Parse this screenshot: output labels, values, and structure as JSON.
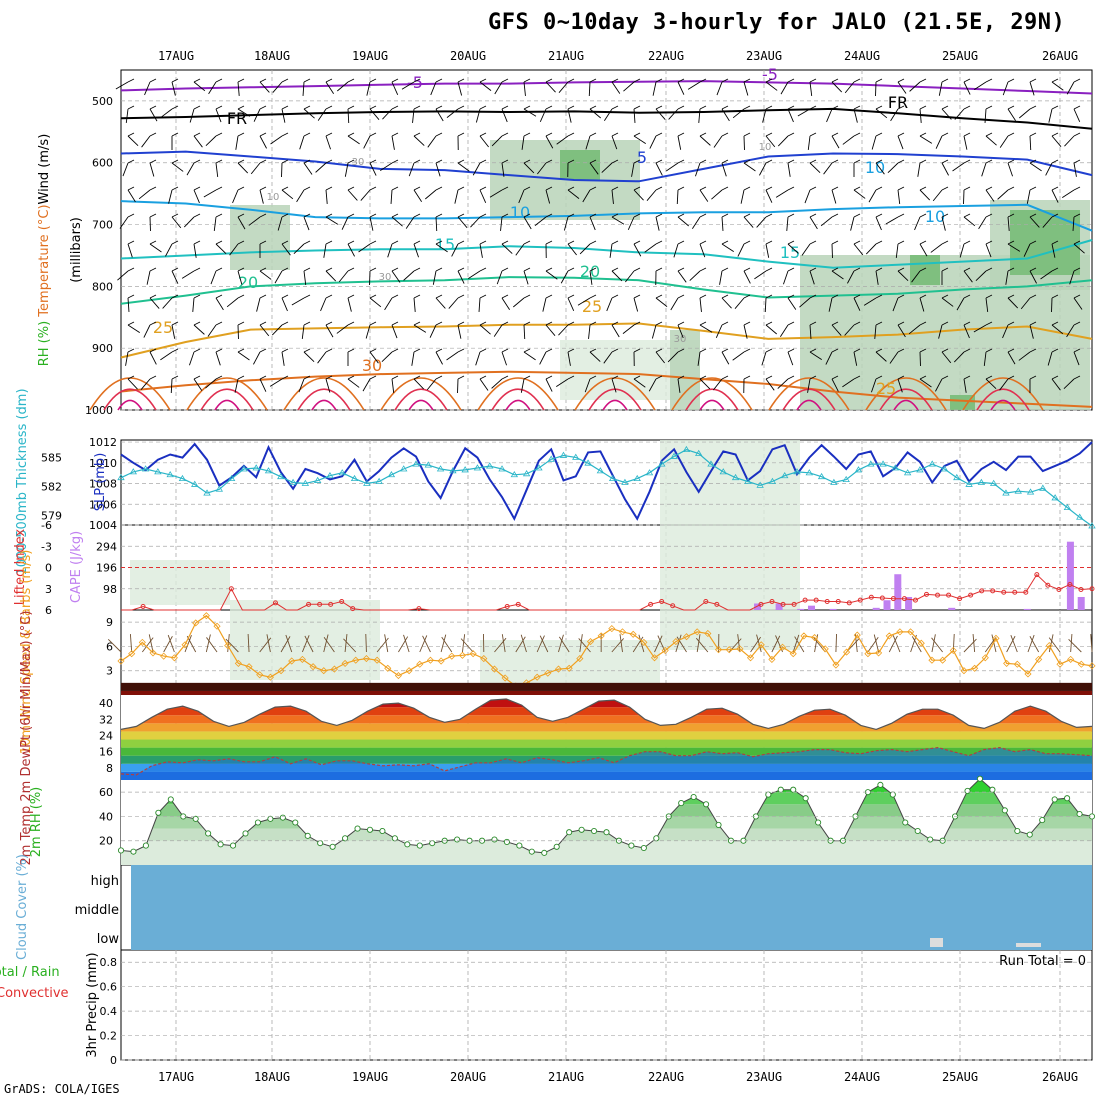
{
  "title": "GFS 0~10day 3-hourly for JALO (21.5E, 29N)",
  "credit": "GrADS: COLA/IGES",
  "dates": [
    "17AUG",
    "18AUG",
    "19AUG",
    "20AUG",
    "21AUG",
    "22AUG",
    "23AUG",
    "24AUG",
    "25AUG",
    "26AUG"
  ],
  "run_total": "Run Total = 0",
  "colors": {
    "grid": "#aaaaaa",
    "rh_light": "#dcebdc",
    "rh_mid": "#b8d4b8",
    "rh_dark": "#7fbf7f",
    "slp": "#1a2fc0",
    "thick": "#2ab5c8",
    "lifted": "#e03030",
    "cape": "#c080f0",
    "wind": "#f0a020",
    "cloud": "#6aaed6",
    "rh2m": "#6ccf6c"
  },
  "chart_data": [
    {
      "panel": "upper-air",
      "type": "contour",
      "ylabel_parts": [
        "Wind (m/s)",
        "Temperature (°C)",
        "RH (%)"
      ],
      "ylabel_unit": "(millibars)",
      "yticks": [
        "500",
        "600",
        "700",
        "800",
        "900",
        "1000"
      ],
      "ylim": [
        450,
        1000
      ],
      "isotherm_labels": [
        "-5",
        "-5",
        "FR",
        "FR",
        "5",
        "10",
        "10",
        "10",
        "15",
        "15",
        "20",
        "20",
        "25",
        "25",
        "25",
        "30"
      ],
      "rh_labels": [
        "30",
        "30",
        "30",
        "10",
        "10"
      ],
      "isotherms": [
        {
          "label": "-5",
          "p": [
            483,
            480,
            478,
            476,
            474,
            472,
            472,
            470,
            469,
            468,
            470,
            472,
            476,
            480,
            484,
            488
          ]
        },
        {
          "label": "FR",
          "p": [
            528,
            526,
            523,
            520,
            518,
            517,
            518,
            517,
            519,
            518,
            515,
            513,
            520,
            528,
            535,
            545
          ]
        },
        {
          "label": "5",
          "p": [
            585,
            582,
            590,
            598,
            610,
            612,
            620,
            628,
            630,
            610,
            590,
            585,
            586,
            590,
            595,
            620
          ]
        },
        {
          "label": "10",
          "p": [
            662,
            666,
            676,
            688,
            690,
            690,
            688,
            686,
            682,
            680,
            680,
            675,
            672,
            670,
            668,
            710
          ]
        },
        {
          "label": "15",
          "p": [
            755,
            750,
            745,
            742,
            740,
            740,
            735,
            738,
            745,
            748,
            760,
            770,
            765,
            760,
            755,
            725
          ]
        },
        {
          "label": "20",
          "p": [
            828,
            815,
            800,
            795,
            792,
            790,
            785,
            786,
            790,
            805,
            818,
            815,
            812,
            805,
            800,
            790
          ]
        },
        {
          "label": "25",
          "p": [
            915,
            890,
            870,
            868,
            866,
            865,
            862,
            862,
            860,
            872,
            885,
            882,
            878,
            870,
            865,
            885
          ]
        },
        {
          "label": "30",
          "p": [
            970,
            960,
            952,
            946,
            942,
            940,
            938,
            940,
            942,
            950,
            958,
            970,
            980,
            985,
            990,
            995
          ]
        }
      ]
    },
    {
      "panel": "slp-thickness",
      "type": "line",
      "ylabel_left": "1000-500mb Thickness (dm)",
      "ylabel_right": "SLP (mb)",
      "left_ticks": [
        "585",
        "582",
        "579"
      ],
      "right_ticks": [
        "1012",
        "1010",
        "1008",
        "1006",
        "1004"
      ],
      "ylim_slp": [
        1004,
        1012.2
      ],
      "ylim_thick": [
        578,
        586.8
      ],
      "series": [
        {
          "name": "SLP",
          "values": [
            1010.8,
            1010,
            1009.3,
            1010.3,
            1010.8,
            1010.5,
            1011.8,
            1010.3,
            1007.8,
            1008.6,
            1009.7,
            1008.6,
            1011.5,
            1009.1,
            1007.5,
            1009.4,
            1009,
            1008.4,
            1008.7,
            1010.3,
            1008.2,
            1009.2,
            1010.5,
            1011.4,
            1010.6,
            1008.2,
            1006.6,
            1009.2,
            1011.4,
            1010.5,
            1008.4,
            1006.7,
            1004.6,
            1007.4,
            1010.2,
            1011.3,
            1008.3,
            1008.7,
            1011,
            1011.1,
            1008.8,
            1006.5,
            1004.6,
            1007.2,
            1010.2,
            1011.3,
            1009.1,
            1007.2,
            1009.2,
            1011.1,
            1010.8,
            1008.3,
            1009.2,
            1011.3,
            1011.7,
            1008.9,
            1010.5,
            1011.7,
            1010.6,
            1009.4,
            1010.8,
            1011.1,
            1008.7,
            1009.5,
            1011,
            1010.1,
            1008.1,
            1009.7,
            1010.2,
            1008.2,
            1009.4,
            1010.1,
            1009.3,
            1010.6,
            1010.6,
            1009.2,
            1009.7,
            1010.2,
            1010.9,
            1012
          ]
        },
        {
          "name": "Thickness",
          "values": [
            582.9,
            583.5,
            583.8,
            583.5,
            583.2,
            582.8,
            582.2,
            581.3,
            581.7,
            582.8,
            583.8,
            583.9,
            583.6,
            583,
            582.4,
            582.3,
            582.6,
            583.1,
            583.4,
            582.8,
            582.3,
            582.5,
            583.2,
            583.8,
            584.3,
            584.2,
            583.8,
            583.6,
            583.7,
            583.9,
            584.1,
            583.8,
            583.2,
            583.3,
            583.9,
            584.8,
            585.2,
            585,
            584.4,
            583.6,
            582.8,
            582.4,
            582.8,
            583.4,
            584.3,
            585.1,
            585.8,
            585.4,
            584.3,
            583.5,
            582.9,
            582.5,
            582.1,
            582.5,
            583.1,
            583.5,
            583.4,
            583,
            582.4,
            582.7,
            583.7,
            584.3,
            584.3,
            583.9,
            583.4,
            583.7,
            584.3,
            583.8,
            582.9,
            582.2,
            582.4,
            582.3,
            581.3,
            581.5,
            581.4,
            581.8,
            580.8,
            579.8,
            578.8,
            577.9
          ]
        }
      ]
    },
    {
      "panel": "lifted-cape",
      "type": "bar+line",
      "ylabel_left": "Lifted Index",
      "ylabel_right": "CAPE (J/kg)",
      "left_ticks": [
        "-6",
        "-3",
        "0",
        "3",
        "6"
      ],
      "right_ticks": [
        "294",
        "196",
        "98"
      ],
      "ylim_cape": [
        0,
        392
      ],
      "cape": [
        0,
        0,
        0,
        0,
        0,
        0,
        0,
        0,
        0,
        0,
        0,
        0,
        0,
        0,
        0,
        0,
        0,
        0,
        0,
        0,
        0,
        0,
        0,
        0,
        0,
        0,
        0,
        0,
        0,
        0,
        0,
        0,
        0,
        0,
        0,
        0,
        0,
        0,
        0,
        0,
        0,
        0,
        0,
        0,
        0,
        0,
        0,
        0,
        0,
        0,
        0,
        0,
        0,
        0,
        0,
        0,
        0,
        0,
        0,
        30,
        0,
        30,
        0,
        5,
        20,
        0,
        5,
        0,
        0,
        0,
        10,
        45,
        165,
        60,
        0,
        0,
        0,
        10,
        0,
        0,
        0,
        0,
        0,
        0,
        5,
        0,
        0,
        0,
        315,
        60,
        0
      ],
      "lifted": [
        6,
        6,
        5.5,
        6,
        6,
        6,
        6,
        6,
        6,
        6,
        3,
        6,
        6,
        6,
        5,
        6,
        6,
        5.2,
        5.2,
        5.2,
        4.8,
        5.8,
        6,
        6,
        6,
        6,
        6,
        5.8,
        6,
        6,
        6,
        6,
        6,
        6,
        6,
        5.5,
        5.2,
        6,
        6,
        6,
        6,
        6,
        6,
        6,
        6,
        6,
        6,
        6,
        5.2,
        4.8,
        5.4,
        6,
        6,
        4.8,
        5.2,
        6,
        6,
        6,
        5.2,
        4.8,
        5.2,
        5.2,
        4.6,
        4.6,
        4.8,
        4.8,
        5,
        4.6,
        4.2,
        4.3,
        4.4,
        4.4,
        4.6,
        3.8,
        3.9,
        3.9,
        4.4,
        3.9,
        3.3,
        3.3,
        3.5,
        3.5,
        3.5,
        1,
        2.5,
        3.1,
        2.4,
        3.1,
        3
      ]
    },
    {
      "panel": "10m-wind",
      "type": "line",
      "ylabel": "10m Wind Speed & Barbs (m/s)",
      "yticks": [
        "9",
        "6",
        "3"
      ],
      "ylim": [
        0,
        10.5
      ],
      "values": [
        4.2,
        5.1,
        6.5,
        5.2,
        4.8,
        4.6,
        6.2,
        8.9,
        9.8,
        8.5,
        6.1,
        3.9,
        3.5,
        2.5,
        2.2,
        3,
        4.2,
        4.4,
        3.5,
        3,
        3.2,
        3.9,
        4.3,
        4.5,
        4.3,
        3.3,
        2.4,
        3,
        3.8,
        4.3,
        4.2,
        4.8,
        4.9,
        5.1,
        4.5,
        3.2,
        2.1,
        1.1,
        1.5,
        2.2,
        2.7,
        3.2,
        3.3,
        4.5,
        6.6,
        7.3,
        8.2,
        7.8,
        7.5,
        6.5,
        4.6,
        5.5,
        6.6,
        7.2,
        7.8,
        7.6,
        5.6,
        5.6,
        5.7,
        4.6,
        6.2,
        4.4,
        5.9,
        5.1,
        7.3,
        7.1,
        5.7,
        3.7,
        5.3,
        7.4,
        5.1,
        5.2,
        7.3,
        7.8,
        7.8,
        6.4,
        4.3,
        4.3,
        5.5,
        3,
        3.3,
        4.6,
        7,
        3.9,
        3.8,
        2.6,
        4.4,
        6.1,
        3.8,
        4.4,
        3.8,
        3.6
      ]
    },
    {
      "panel": "2m-temp",
      "type": "area",
      "ylabel": "2m Temp 2m DewPt (6hr Min/Max) (°C)",
      "yticks": [
        "40",
        "32",
        "24",
        "16",
        "8"
      ],
      "ylim": [
        2,
        44
      ],
      "temperature": [
        27,
        28.5,
        33,
        37,
        38.5,
        36,
        31,
        28.5,
        30.5,
        34.5,
        38,
        38.5,
        36,
        31,
        29,
        31.5,
        36,
        39.5,
        40,
        37.5,
        33,
        30.5,
        32,
        37,
        41.5,
        42,
        39,
        33,
        31,
        33,
        37,
        41,
        41.5,
        38,
        32,
        29,
        29.5,
        33,
        37,
        37.5,
        34.5,
        29.5,
        27.5,
        29.5,
        33.5,
        36.5,
        37,
        34,
        29,
        27,
        30,
        34.5,
        37,
        37,
        34,
        29,
        27.5,
        30.5,
        36,
        38.5,
        36,
        31,
        28,
        28.5
      ],
      "dewpoint": [
        5,
        4.5,
        9,
        11,
        10.5,
        12,
        11.5,
        12.5,
        11,
        11,
        13.5,
        10,
        12.5,
        9.5,
        11.5,
        11.5,
        10,
        9,
        9.5,
        9,
        10,
        6.5,
        8.5,
        10.5,
        10.5,
        12.5,
        10.5,
        13,
        12,
        10.5,
        11.5,
        13,
        10.5,
        14,
        16,
        16,
        14,
        14,
        16,
        15,
        15.5,
        13.5,
        15,
        15.5,
        16,
        17,
        17,
        15.5,
        15,
        16.5,
        17,
        16,
        17,
        18,
        16,
        14,
        17,
        18,
        16,
        17,
        15,
        15,
        14.5,
        14
      ]
    },
    {
      "panel": "2m-rh",
      "type": "area",
      "ylabel": "2m RH (%)",
      "yticks": [
        "60",
        "40",
        "20"
      ],
      "ylim": [
        0,
        70
      ],
      "values": [
        12,
        11,
        16,
        43,
        54,
        40,
        38,
        26,
        17,
        16,
        26,
        35,
        38,
        39,
        35,
        24,
        18,
        15,
        22,
        30,
        29,
        28,
        22,
        17,
        16,
        18,
        20,
        21,
        20,
        20,
        21,
        19,
        16,
        11,
        10,
        15,
        27,
        29,
        28,
        27,
        20,
        16,
        14,
        22,
        40,
        51,
        56,
        50,
        33,
        20,
        20,
        40,
        58,
        62,
        62,
        55,
        35,
        20,
        20,
        40,
        60,
        66,
        58,
        35,
        28,
        21,
        20,
        40,
        61,
        71,
        62,
        45,
        28,
        25,
        37,
        54,
        55,
        42,
        40
      ]
    },
    {
      "panel": "cloud-cover",
      "type": "bar",
      "ylabel": "Cloud Cover (%)",
      "levels": [
        "high",
        "middle",
        "low"
      ]
    },
    {
      "panel": "precip",
      "type": "bar",
      "ylabel_left": "Total / Rain Convective",
      "ylabel_right": "3hr Precip (mm)",
      "yticks": [
        "0.8",
        "0.6",
        "0.4",
        "0.2",
        "0"
      ],
      "ylim": [
        0,
        0.9
      ],
      "values": []
    }
  ]
}
